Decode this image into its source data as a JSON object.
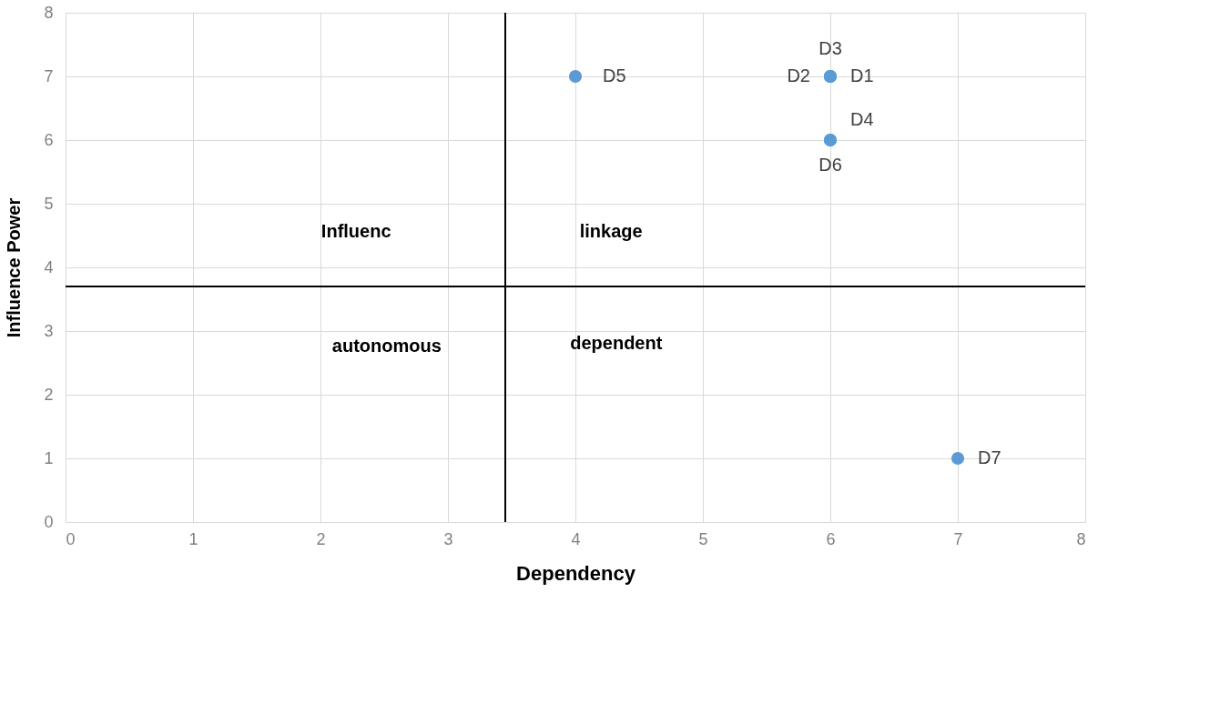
{
  "chart_data": {
    "type": "scatter",
    "xlabel": "Dependency",
    "ylabel": "Influence Power",
    "x": [
      4,
      6,
      6,
      6,
      6,
      6,
      7
    ],
    "values": [
      7,
      7,
      7,
      7,
      6,
      6,
      1
    ],
    "value_labels": [
      "D5",
      "D3",
      "D2",
      "D1",
      "D4",
      "D6",
      "D7"
    ],
    "color": "#5b9bd5",
    "marker": "circle",
    "xlim": [
      0,
      8
    ],
    "ylim": [
      0,
      8
    ],
    "xticks": [
      0,
      1,
      2,
      3,
      4,
      5,
      6,
      7,
      8
    ],
    "yticks": [
      0,
      1,
      2,
      3,
      4,
      5,
      6,
      7,
      8
    ],
    "grid": true,
    "ref_lines": [
      {
        "axis": "x",
        "value": 3.45,
        "color": "#000000"
      },
      {
        "axis": "y",
        "value": 3.7,
        "color": "#000000"
      }
    ],
    "annotations": [
      "Influenc",
      "linkage",
      "autonomous",
      "dependent"
    ]
  }
}
